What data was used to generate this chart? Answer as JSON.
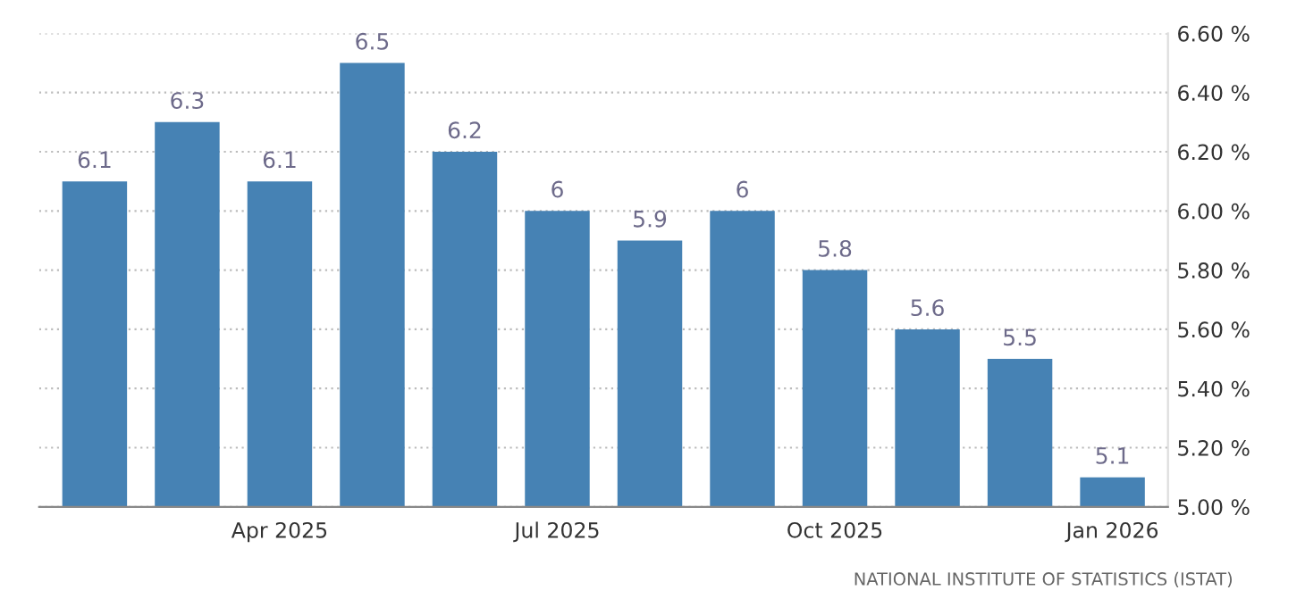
{
  "chart_data": {
    "type": "bar",
    "categories": [
      null,
      null,
      "Apr 2025",
      null,
      null,
      "Jul 2025",
      null,
      null,
      "Oct 2025",
      null,
      null,
      "Jan 2026"
    ],
    "values": [
      6.1,
      6.3,
      6.1,
      6.5,
      6.2,
      6,
      5.9,
      6,
      5.8,
      5.6,
      5.5,
      5.1
    ],
    "color": "#4682b4",
    "data_labels": true,
    "ylim": [
      5.0,
      6.6
    ],
    "yticks": [
      {
        "value": 5.0,
        "label": "5.00 %"
      },
      {
        "value": 5.2,
        "label": "5.20 %"
      },
      {
        "value": 5.4,
        "label": "5.40 %"
      },
      {
        "value": 5.6,
        "label": "5.60 %"
      },
      {
        "value": 5.8,
        "label": "5.80 %"
      },
      {
        "value": 6.0,
        "label": "6.00 %"
      },
      {
        "value": 6.2,
        "label": "6.20 %"
      },
      {
        "value": 6.4,
        "label": "6.40 %"
      },
      {
        "value": 6.6,
        "label": "6.60 %"
      }
    ],
    "grid": "y",
    "annotations": [
      "NATIONAL INSTITUTE OF STATISTICS (ISTAT)"
    ]
  }
}
